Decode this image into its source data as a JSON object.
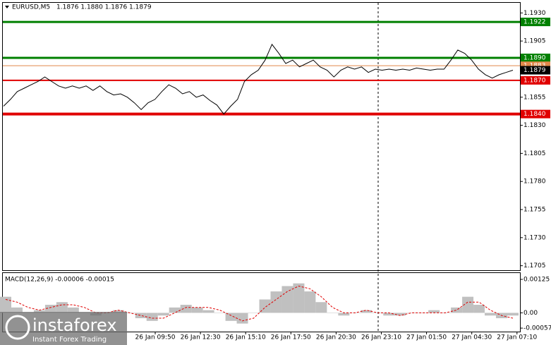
{
  "chart_data": {
    "type": "line",
    "title": "EURUSD,M5",
    "subtitle": "1.1876 1.1880 1.1876 1.1879",
    "color": "#000000",
    "values": [
      1.1847,
      1.1853,
      1.186,
      1.1863,
      1.1866,
      1.1869,
      1.1873,
      1.1869,
      1.1865,
      1.1863,
      1.1865,
      1.1863,
      1.1865,
      1.1861,
      1.1865,
      1.186,
      1.1857,
      1.1858,
      1.1855,
      1.185,
      1.1844,
      1.185,
      1.1853,
      1.186,
      1.1866,
      1.1863,
      1.1858,
      1.186,
      1.1855,
      1.1857,
      1.1852,
      1.1848,
      1.184,
      1.1847,
      1.1853,
      1.1869,
      1.1875,
      1.1879,
      1.1888,
      1.1902,
      1.1894,
      1.1885,
      1.1888,
      1.1882,
      1.1885,
      1.1888,
      1.1882,
      1.1879,
      1.1873,
      1.1879,
      1.1882,
      1.188,
      1.1882,
      1.1877,
      1.188,
      1.1879,
      1.188,
      1.1879,
      1.188,
      1.1879,
      1.1881,
      1.188,
      1.1879,
      1.188,
      1.188,
      1.1888,
      1.1897,
      1.1894,
      1.1888,
      1.188,
      1.1875,
      1.1872,
      1.1875,
      1.1877,
      1.1879
    ],
    "xtick_labels": [
      "26 Jan 09:50",
      "26 Jan 12:30",
      "26 Jan 15:10",
      "26 Jan 17:50",
      "26 Jan 20:30",
      "26 Jan 23:10",
      "27 Jan 01:50",
      "27 Jan 04:30",
      "27 Jan 07:10"
    ],
    "ylim": [
      1.1701,
      1.1939
    ],
    "yticks": [
      {
        "value": 1.193,
        "label": "1.1930"
      },
      1.1905,
      {
        "value": 1.188,
        "label": "1.1880"
      },
      1.1855,
      {
        "value": 1.183,
        "label": "1.1830"
      },
      1.1805,
      {
        "value": 1.178,
        "label": "1.1780"
      },
      1.1755,
      {
        "value": 1.173,
        "label": "1.1730"
      },
      1.1705
    ],
    "levels": [
      {
        "value": 1.1922,
        "color": "#008000"
      },
      {
        "value": 1.189,
        "label": "1.1890",
        "color": "#008000"
      },
      {
        "value": 1.1883,
        "color": "#e0884a"
      },
      {
        "value": 1.187,
        "label": "1.1870",
        "color": "#e00000"
      },
      {
        "value": 1.184,
        "label": "1.1840",
        "color": "#e00000"
      },
      {
        "value": 1.1879,
        "color": "#000000"
      }
    ],
    "macd": {
      "title": "MACD(12,26,9) -0.00006 -0.00015",
      "ylim": [
        -0.0007,
        0.00146
      ],
      "yticks": [
        0.00125,
        {
          "value": 0,
          "label": "0.00"
        },
        -0.00057
      ],
      "series": [
        {
          "color": "#c0c0c0",
          "values": [
            0.0006,
            0.0002,
            0.0,
            0.0001,
            0.0003,
            0.0004,
            0.0002,
            0.0,
            -0.0001,
            0.0,
            0.0001,
            0.0,
            -0.0002,
            -0.0003,
            -0.0001,
            0.0002,
            0.0003,
            0.0002,
            0.0001,
            0.0,
            -0.0003,
            -0.0004,
            0.0,
            0.0005,
            0.0008,
            0.001,
            0.0011,
            0.0008,
            0.0004,
            0.0,
            -0.0001,
            0.0,
            0.0001,
            0.0,
            -0.0001,
            -0.0001,
            0.0,
            0.0,
            0.0001,
            0.0,
            0.0002,
            0.0006,
            0.0003,
            -0.0001,
            -0.0002,
            -0.0001
          ]
        },
        {
          "color": "#e00000",
          "values": [
            0.0005,
            0.0004,
            0.0002,
            0.0001,
            0.0002,
            0.0003,
            0.0003,
            0.0002,
            0.0,
            0.0,
            0.0001,
            0.0,
            -0.0001,
            -0.0002,
            -0.0002,
            0.0,
            0.0002,
            0.0002,
            0.0002,
            0.0001,
            -0.0001,
            -0.0003,
            -0.0002,
            0.0002,
            0.0005,
            0.0008,
            0.001,
            0.0009,
            0.0006,
            0.0002,
            0.0,
            0.0,
            0.0001,
            0.0,
            0.0,
            -0.0001,
            0.0,
            0.0,
            0.0,
            0.0,
            0.0001,
            0.0004,
            0.0004,
            0.0001,
            -0.0001,
            -0.0002
          ]
        }
      ]
    }
  },
  "logo": {
    "name": "instaforex",
    "tagline": "Instant Forex Trading"
  }
}
